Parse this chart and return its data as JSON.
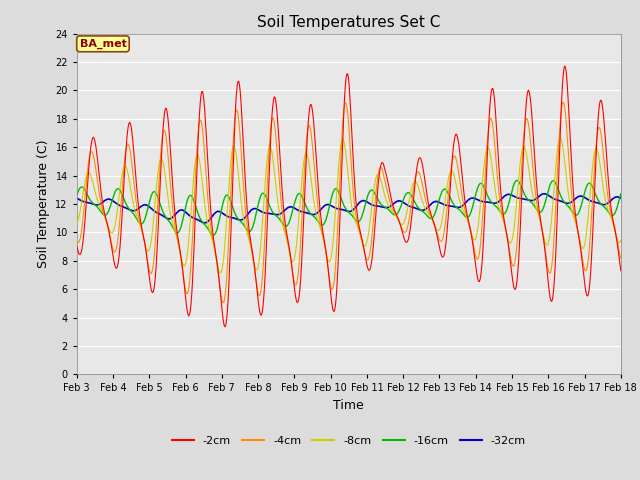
{
  "title": "Soil Temperatures Set C",
  "xlabel": "Time",
  "ylabel": "Soil Temperature (C)",
  "ylim": [
    0,
    24
  ],
  "yticks": [
    0,
    2,
    4,
    6,
    8,
    10,
    12,
    14,
    16,
    18,
    20,
    22,
    24
  ],
  "xtick_labels": [
    "Feb 3",
    "Feb 4",
    "Feb 5",
    "Feb 6",
    "Feb 7",
    "Feb 8",
    "Feb 9",
    "Feb 10",
    "Feb 11",
    "Feb 12",
    "Feb 13",
    "Feb 14",
    "Feb 15",
    "Feb 16",
    "Feb 17",
    "Feb 18"
  ],
  "annotation_text": "BA_met",
  "annotation_bg": "#FFFF99",
  "annotation_border": "#8B4513",
  "annotation_text_color": "#8B0000",
  "fig_facecolor": "#DCDCDC",
  "ax_facecolor": "#E8E8E8",
  "colors": {
    "-2cm": "#FF0000",
    "-4cm": "#FF8C00",
    "-8cm": "#CCCC00",
    "-16cm": "#00BB00",
    "-32cm": "#0000CC"
  },
  "legend_labels": [
    "-2cm",
    "-4cm",
    "-8cm",
    "-16cm",
    "-32cm"
  ]
}
